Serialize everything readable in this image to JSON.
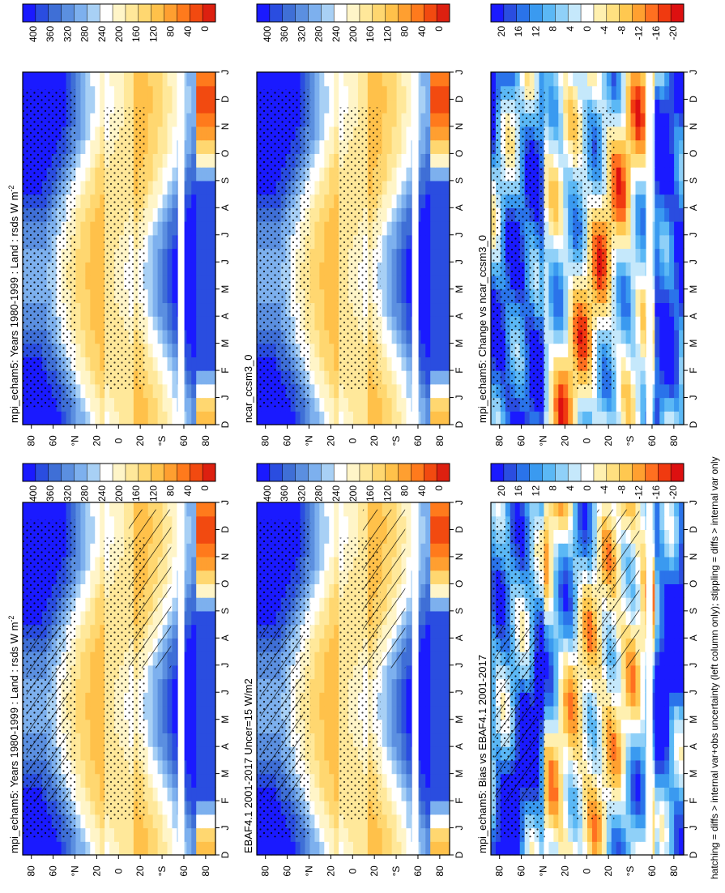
{
  "footnote": "hatching = diffs > internal var+obs uncertainty (left column only); stippling = diffs > internal var only",
  "colors": {
    "abs_palette": [
      "#1a1aff",
      "#2a4de0",
      "#3f6fd6",
      "#5b8fe0",
      "#7db0ee",
      "#a8d0f5",
      "#ffffff",
      "#fff5c8",
      "#ffe89a",
      "#ffd770",
      "#ffc14a",
      "#ff9f30",
      "#ff7a1c",
      "#f24a10",
      "#dd2010"
    ],
    "diff_palette": [
      "#1a1aff",
      "#2a4de0",
      "#2a73ea",
      "#3a9af0",
      "#5bb8f5",
      "#8fd0f8",
      "#c5e8fb",
      "#ffffff",
      "#fff0b0",
      "#ffe080",
      "#ffc850",
      "#ffa030",
      "#ff7020",
      "#f03a10",
      "#dd1010"
    ]
  },
  "chart_data": [
    {
      "type": "heatmap",
      "title": "mpi_echam5: Years 1980-1999 : Land : rsds W m",
      "title_sup": "-2",
      "x_ticks": [
        "D",
        "J",
        "F",
        "M",
        "A",
        "M",
        "J",
        "J",
        "A",
        "S",
        "O",
        "N",
        "D",
        "J"
      ],
      "y_ticks": [
        "80",
        "60",
        "°N",
        "20",
        "0",
        "20",
        "°S",
        "60",
        "80"
      ],
      "colorbar_ticks": [
        "400",
        "360",
        "320",
        "280",
        "240",
        "200",
        "160",
        "120",
        "80",
        "40",
        "0"
      ],
      "field": "abs",
      "hatching": true
    },
    {
      "type": "heatmap",
      "title": "EBAF4.1 2001-2017 Uncer=15 W/m2",
      "x_ticks": [
        "D",
        "J",
        "F",
        "M",
        "A",
        "M",
        "J",
        "J",
        "A",
        "S",
        "O",
        "N",
        "D",
        "J"
      ],
      "y_ticks": [
        "80",
        "60",
        "°N",
        "20",
        "0",
        "20",
        "°S",
        "60",
        "80"
      ],
      "colorbar_ticks": [
        "400",
        "360",
        "320",
        "280",
        "240",
        "200",
        "160",
        "120",
        "80",
        "40",
        "0"
      ],
      "field": "abs",
      "hatching": true
    },
    {
      "type": "heatmap",
      "title": "mpi_echam5: Bias vs EBAF4.1 2001-2017",
      "x_ticks": [
        "D",
        "J",
        "F",
        "M",
        "A",
        "M",
        "J",
        "J",
        "A",
        "S",
        "O",
        "N",
        "D",
        "J"
      ],
      "y_ticks": [
        "80",
        "60",
        "°N",
        "20",
        "0",
        "20",
        "°S",
        "60",
        "80"
      ],
      "colorbar_ticks": [
        "20",
        "16",
        "12",
        "8",
        "4",
        "0",
        "-4",
        "-8",
        "-12",
        "-16",
        "-20"
      ],
      "field": "diff",
      "hatching": true
    },
    {
      "type": "heatmap",
      "title": "mpi_echam5: Years 1980-1999 : Land : rsds W m",
      "title_sup": "-2",
      "x_ticks": [
        "D",
        "J",
        "F",
        "M",
        "A",
        "M",
        "J",
        "J",
        "A",
        "S",
        "O",
        "N",
        "D",
        "J"
      ],
      "y_ticks": [
        "80",
        "60",
        "°N",
        "20",
        "0",
        "20",
        "°S",
        "60",
        "80"
      ],
      "colorbar_ticks": [
        "400",
        "360",
        "320",
        "280",
        "240",
        "200",
        "160",
        "120",
        "80",
        "40",
        "0"
      ],
      "field": "abs",
      "hatching": false
    },
    {
      "type": "heatmap",
      "title": "ncar_ccsm3_0",
      "x_ticks": [
        "D",
        "J",
        "F",
        "M",
        "A",
        "M",
        "J",
        "J",
        "A",
        "S",
        "O",
        "N",
        "D",
        "J"
      ],
      "y_ticks": [
        "80",
        "60",
        "°N",
        "20",
        "0",
        "20",
        "°S",
        "60",
        "80"
      ],
      "colorbar_ticks": [
        "400",
        "360",
        "320",
        "280",
        "240",
        "200",
        "160",
        "120",
        "80",
        "40",
        "0"
      ],
      "field": "abs",
      "hatching": false
    },
    {
      "type": "heatmap",
      "title": "mpi_echam5: Change vs ncar_ccsm3_0",
      "x_ticks": [
        "D",
        "J",
        "F",
        "M",
        "A",
        "M",
        "J",
        "J",
        "A",
        "S",
        "O",
        "N",
        "D",
        "J"
      ],
      "y_ticks": [
        "80",
        "60",
        "°N",
        "20",
        "0",
        "20",
        "°S",
        "60",
        "80"
      ],
      "colorbar_ticks": [
        "20",
        "16",
        "12",
        "8",
        "4",
        "0",
        "-4",
        "-8",
        "-12",
        "-16",
        "-20"
      ],
      "field": "diff",
      "hatching": false
    }
  ]
}
